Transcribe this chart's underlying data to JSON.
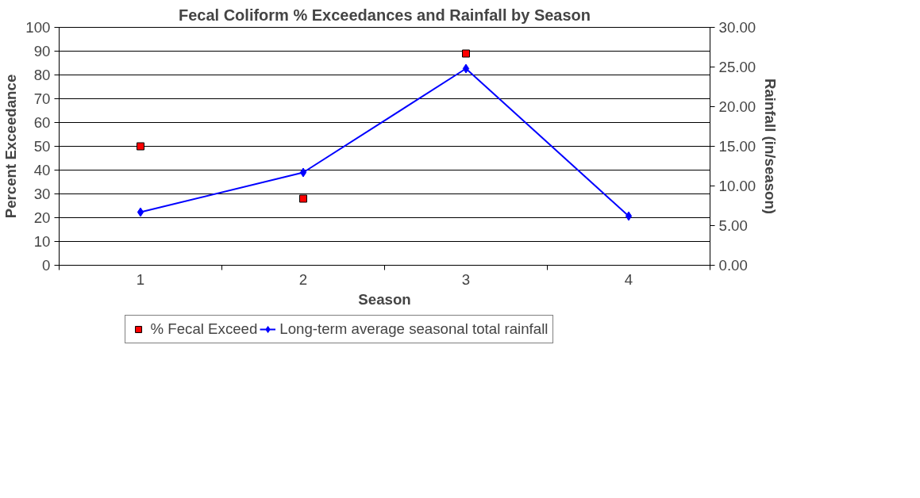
{
  "chart_data": {
    "type": "line",
    "title": "Fecal Coliform % Exceedances and Rainfall by Season",
    "xlabel": "Season",
    "ylabel": "Percent Exceedance",
    "y2label": "Rainfall (in/season)",
    "categories": [
      "1",
      "2",
      "3",
      "4"
    ],
    "series": [
      {
        "name": "% Fecal Exceed",
        "type": "scatter",
        "marker": "square",
        "color": "#ff0000",
        "values": [
          50,
          28,
          89,
          null
        ]
      },
      {
        "name": "Long-term average seasonal total rainfall",
        "type": "line",
        "marker": "diamond",
        "axis": "y2",
        "color": "#0000ff",
        "values": [
          6.7,
          11.7,
          24.8,
          6.2
        ]
      }
    ],
    "ylim": [
      0,
      100
    ],
    "yticks": [
      0,
      10,
      20,
      30,
      40,
      50,
      60,
      70,
      80,
      90,
      100
    ],
    "y2lim": [
      0,
      30
    ],
    "y2ticks": [
      {
        "value": 0,
        "label": "0.00"
      },
      {
        "value": 5,
        "label": "5.00"
      },
      {
        "value": 10,
        "label": "10.00"
      },
      {
        "value": 15,
        "label": "15.00"
      },
      {
        "value": 20,
        "label": "20.00"
      },
      {
        "value": 25,
        "label": "25.00"
      },
      {
        "value": 30,
        "label": "30.00"
      }
    ],
    "grid": "y",
    "legend": "bottom"
  }
}
